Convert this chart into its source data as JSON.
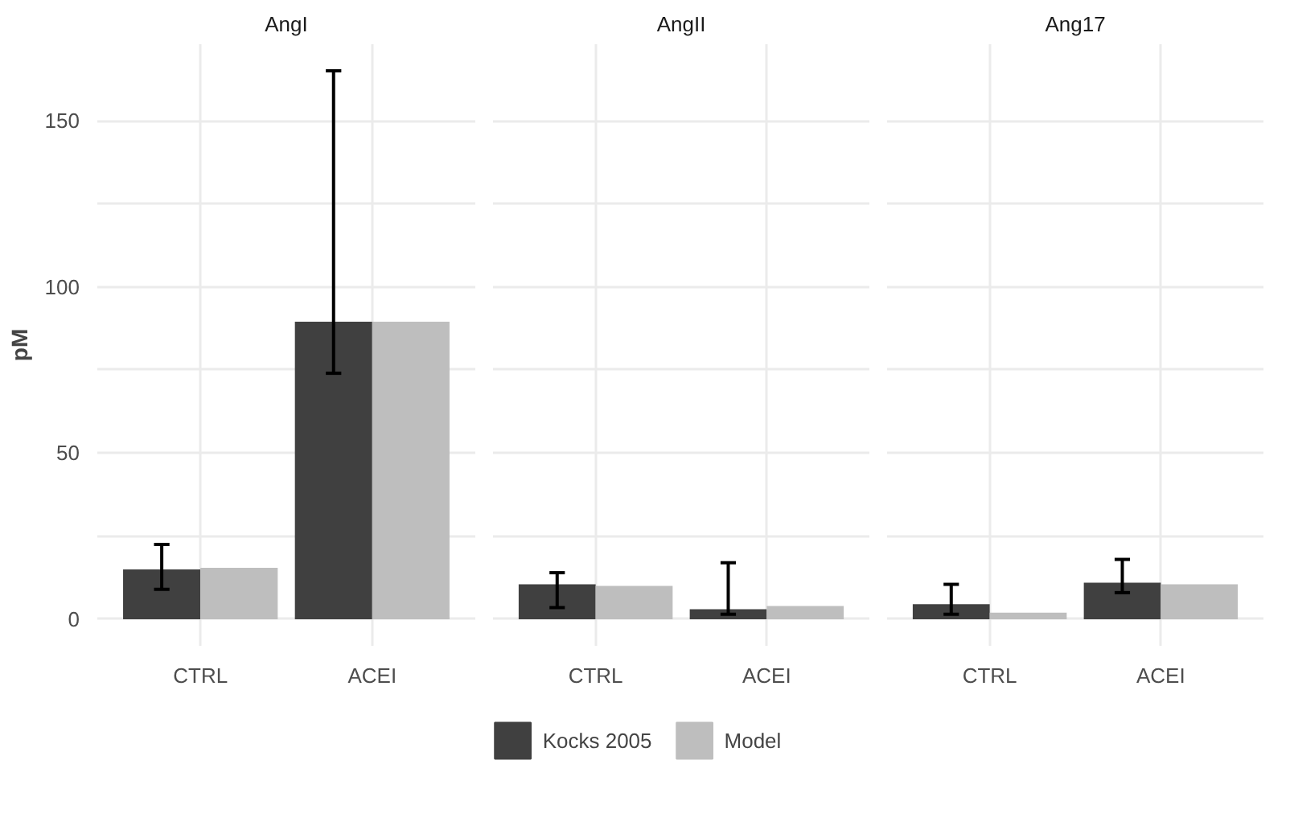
{
  "chart_data": [
    {
      "type": "bar",
      "title": "AngI",
      "ylabel": "pM",
      "categories": [
        "CTRL",
        "ACEI"
      ],
      "ylim": [
        -8,
        173
      ],
      "yticks": [
        0,
        {
          "value": 25,
          "label": null
        },
        50,
        {
          "value": 75,
          "label": null
        },
        100,
        {
          "value": 125,
          "label": null
        },
        150
      ],
      "grid": true,
      "legend": "bottom",
      "series": [
        {
          "name": "Kocks 2005",
          "color": "#404040",
          "values": [
            15,
            89.5
          ],
          "errors": [
            [
              9,
              22.5
            ],
            [
              74,
              165
            ]
          ]
        },
        {
          "name": "Model",
          "color": "#bebebe",
          "values": [
            15.5,
            89.5
          ]
        }
      ]
    },
    {
      "type": "bar",
      "title": "AngII",
      "categories": [
        "CTRL",
        "ACEI"
      ],
      "ylim": [
        -8,
        173
      ],
      "yticks": [
        0,
        {
          "value": 25,
          "label": null
        },
        50,
        {
          "value": 75,
          "label": null
        },
        100,
        {
          "value": 125,
          "label": null
        },
        150
      ],
      "grid": true,
      "tick_labels": "x",
      "series": [
        {
          "name": "Kocks 2005",
          "color": "#404040",
          "values": [
            10.5,
            3
          ],
          "errors": [
            [
              3.5,
              14
            ],
            [
              1.5,
              17
            ]
          ]
        },
        {
          "name": "Model",
          "color": "#bebebe",
          "values": [
            10,
            4
          ]
        }
      ]
    },
    {
      "type": "bar",
      "title": "Ang17",
      "categories": [
        "CTRL",
        "ACEI"
      ],
      "ylim": [
        -8,
        173
      ],
      "yticks": [
        0,
        {
          "value": 25,
          "label": null
        },
        50,
        {
          "value": 75,
          "label": null
        },
        100,
        {
          "value": 125,
          "label": null
        },
        150
      ],
      "grid": true,
      "tick_labels": "x",
      "series": [
        {
          "name": "Kocks 2005",
          "color": "#404040",
          "values": [
            4.5,
            11
          ],
          "errors": [
            [
              1.5,
              10.5
            ],
            [
              8,
              18
            ]
          ]
        },
        {
          "name": "Model",
          "color": "#bebebe",
          "values": [
            2,
            10.5
          ]
        }
      ]
    }
  ]
}
